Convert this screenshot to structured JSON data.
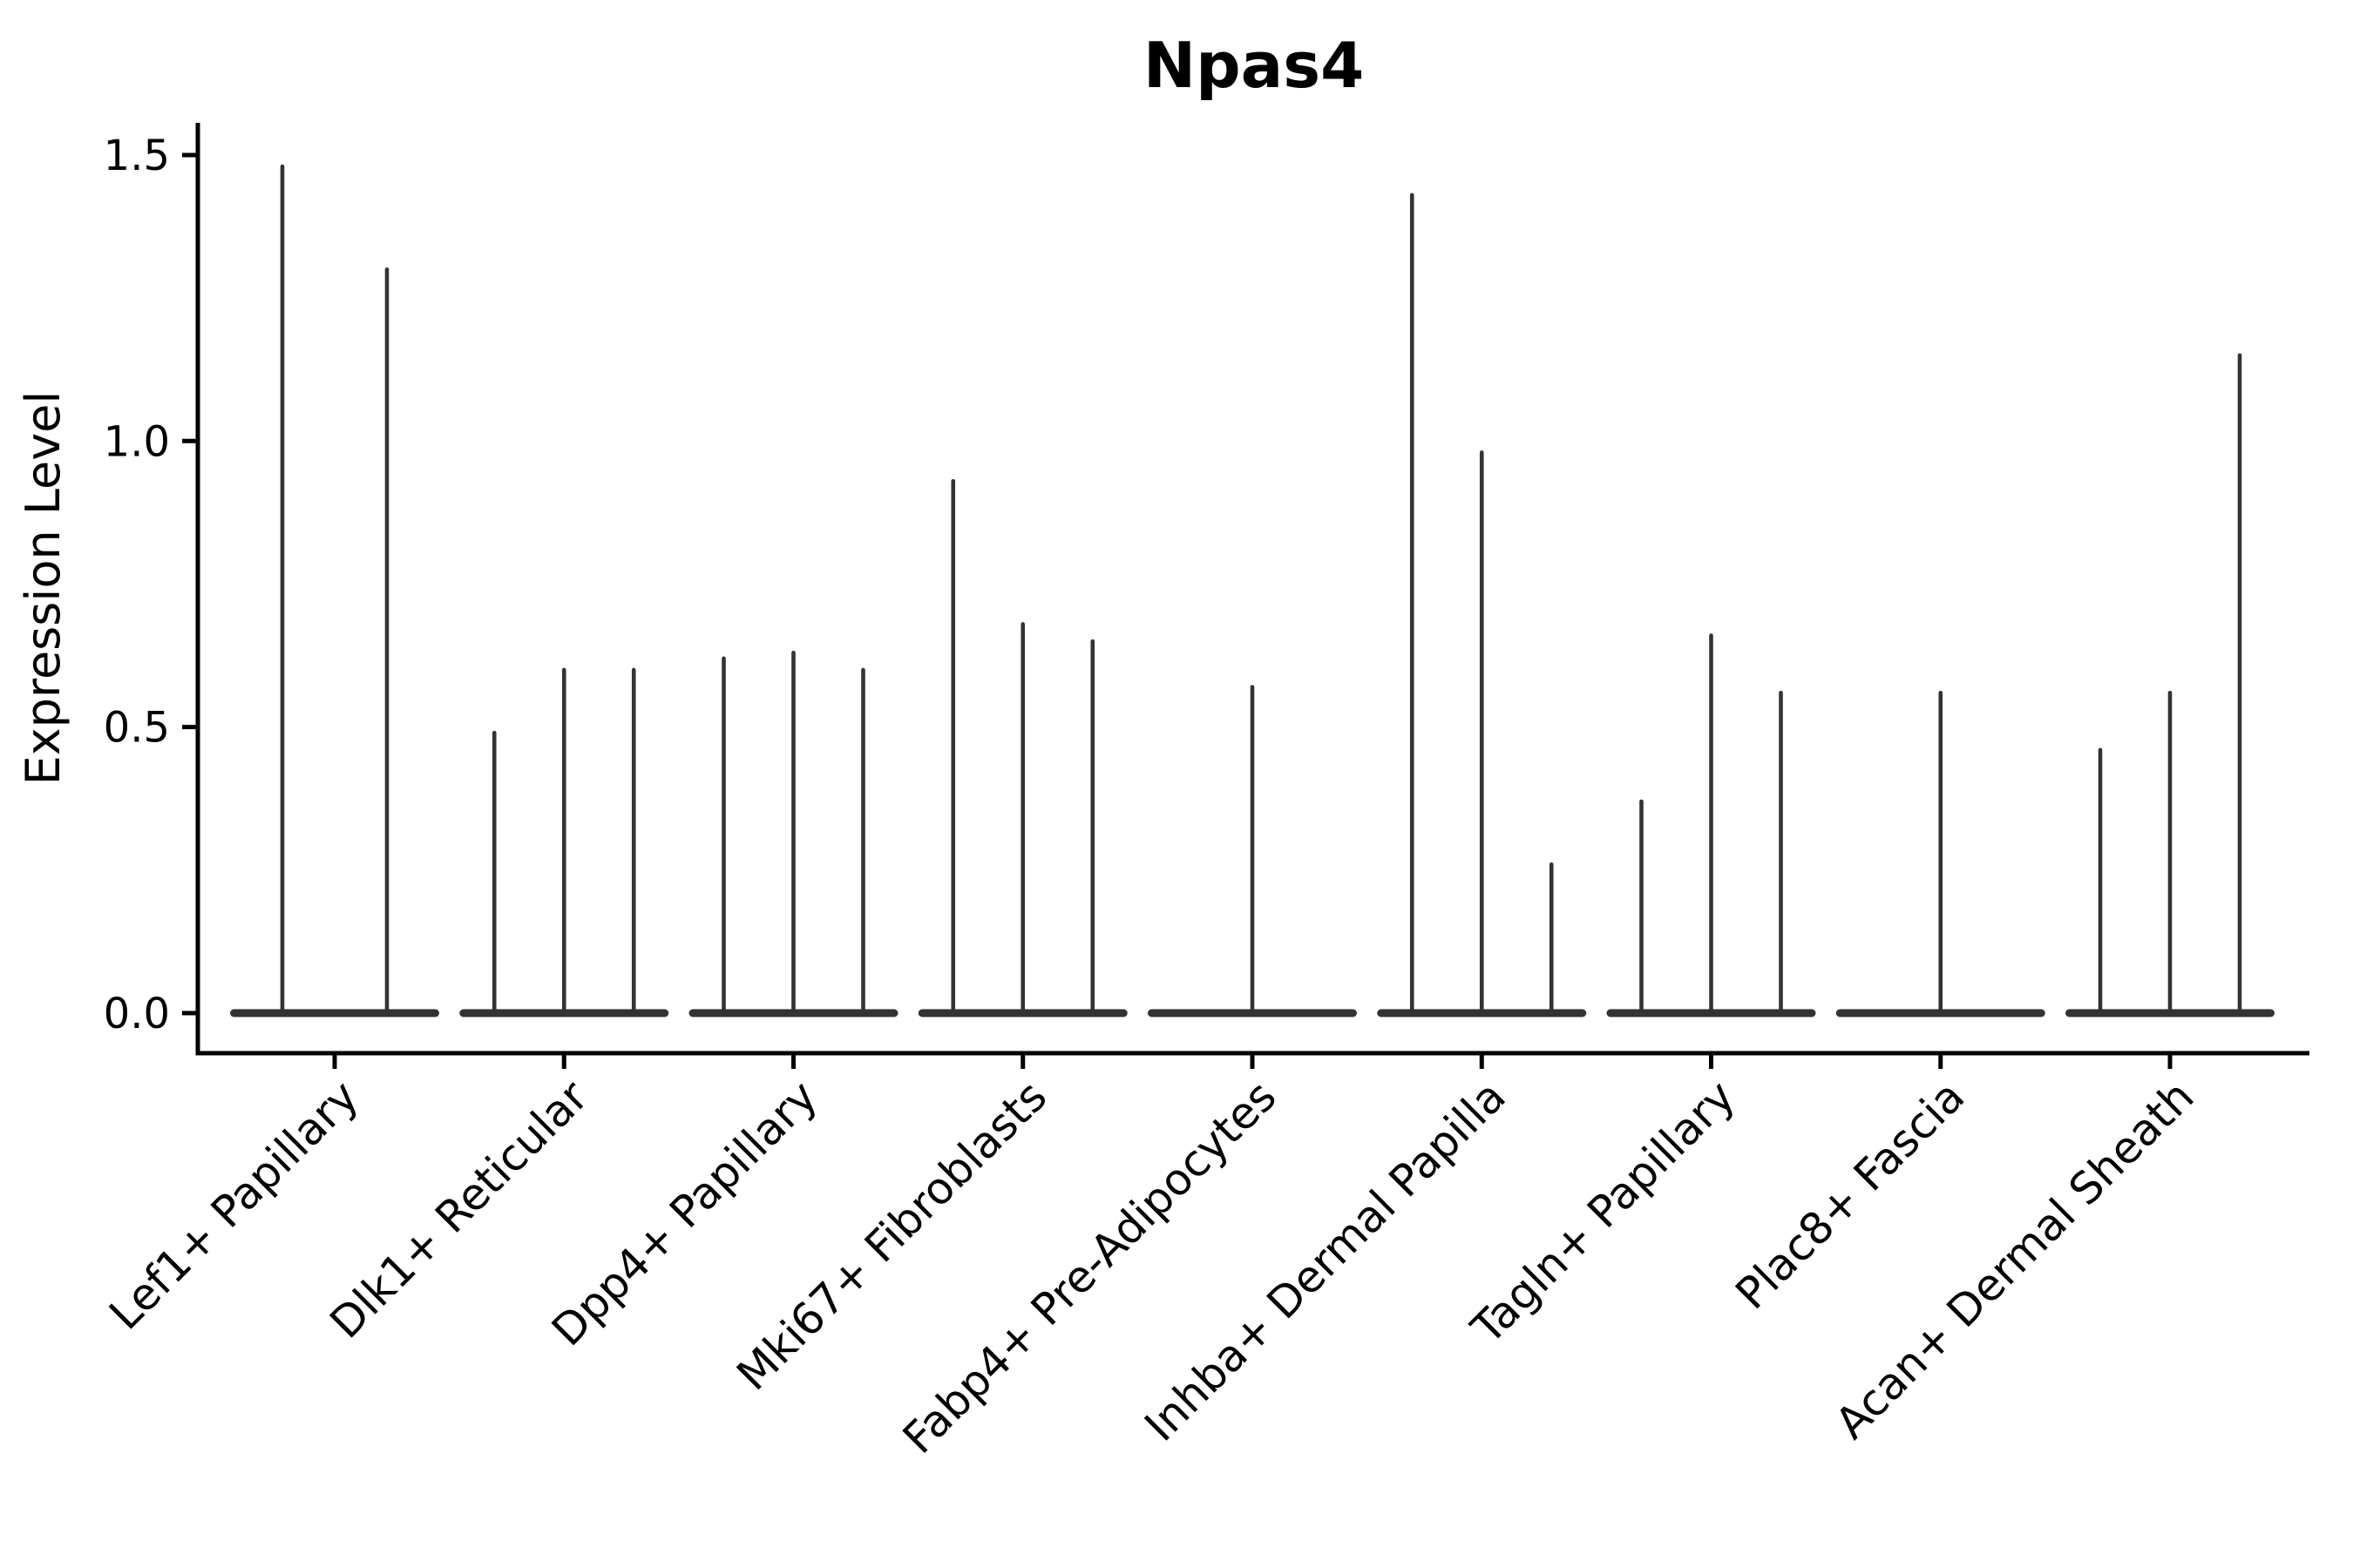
{
  "chart_data": {
    "type": "violin",
    "title": "Npas4",
    "xlabel": "",
    "ylabel": "Expression Level",
    "yticks": [
      0.0,
      0.5,
      1.0,
      1.5
    ],
    "ylim": [
      -0.07,
      1.556
    ],
    "grid": false,
    "legend": "none",
    "description": "Violin plot of Npas4 expression level per fibroblast cluster; each category holds 2-3 thin spike-like violins (max expression listed per violin, 0 = flat all-zero violin).",
    "categories": [
      "Lef1+ Papillary",
      "Dlk1+ Reticular",
      "Dpp4+ Papillary",
      "Mki67+ Fibroblasts",
      "Fabp4+ Pre-Adipocytes",
      "Inhba+ Dermal Papilla",
      "Tagln+ Papillary",
      "Plac8+ Fascia",
      "Acan+ Dermal Sheath"
    ],
    "groups": [
      {
        "category": "Lef1+ Papillary",
        "violin_max_values": [
          1.48,
          1.3
        ]
      },
      {
        "category": "Dlk1+ Reticular",
        "violin_max_values": [
          0.49,
          0.6,
          0.6
        ]
      },
      {
        "category": "Dpp4+ Papillary",
        "violin_max_values": [
          0.62,
          0.63,
          0.6
        ]
      },
      {
        "category": "Mki67+ Fibroblasts",
        "violin_max_values": [
          0.93,
          0.68,
          0.65
        ]
      },
      {
        "category": "Fabp4+ Pre-Adipocytes",
        "violin_max_values": [
          0.0,
          0.57,
          0.0
        ]
      },
      {
        "category": "Inhba+ Dermal Papilla",
        "violin_max_values": [
          1.43,
          0.98,
          0.26
        ]
      },
      {
        "category": "Tagln+ Papillary",
        "violin_max_values": [
          0.37,
          0.66,
          0.56
        ]
      },
      {
        "category": "Plac8+ Fascia",
        "violin_max_values": [
          0.0,
          0.56,
          0.0
        ]
      },
      {
        "category": "Acan+ Dermal Sheath",
        "violin_max_values": [
          0.46,
          0.56,
          1.15
        ]
      }
    ],
    "style": {
      "violin_color": "#333333",
      "axis_color": "#000000",
      "text_color": "#000000",
      "background": "#ffffff"
    }
  }
}
